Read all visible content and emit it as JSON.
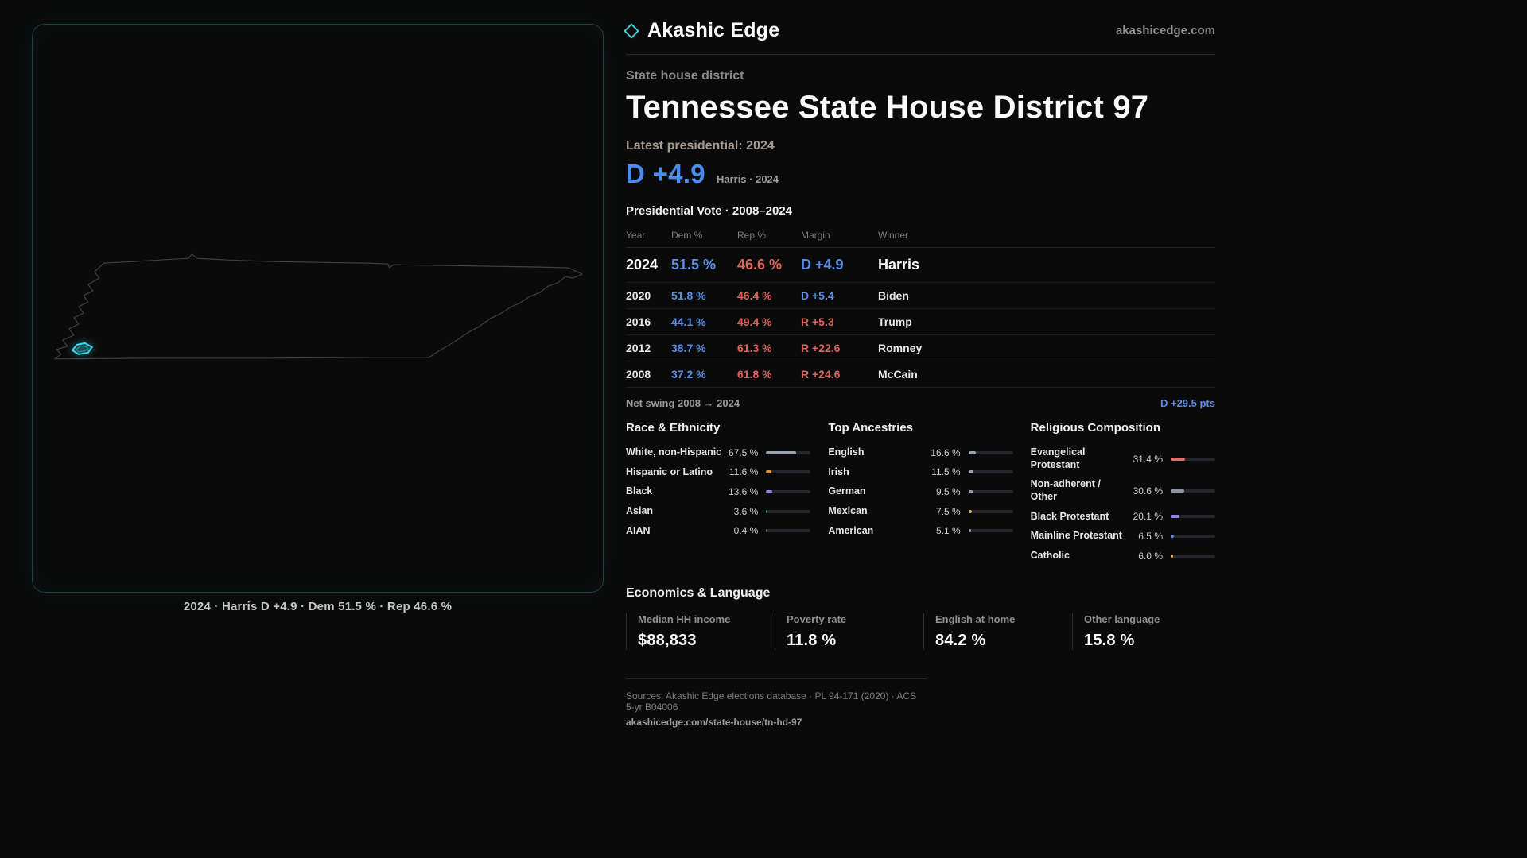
{
  "theme": {
    "background": "#0a0a0a",
    "accent_cyan": "#3ecfdd",
    "dem_blue": "#5b8de4",
    "dem_blue_bright": "#4a8df0",
    "rep_red": "#d9655c"
  },
  "brand": {
    "name": "Akashic Edge",
    "website": "akashicedge.com",
    "icon": "diamond-outline-icon"
  },
  "map": {
    "region": "Tennessee",
    "caption": "2024 · Harris D +4.9 · Dem 51.5 % · Rep 46.6 %"
  },
  "header": {
    "kicker": "State house district",
    "title": "Tennessee State House District 97",
    "latest_label": "Latest presidential: 2024",
    "headline_margin": "D +4.9",
    "headline_detail": "Harris · 2024"
  },
  "vote_table": {
    "title": "Presidential Vote · 2008–2024",
    "columns": [
      "Year",
      "Dem %",
      "Rep %",
      "Margin",
      "Winner"
    ],
    "rows": [
      {
        "year": "2024",
        "dem": "51.5 %",
        "rep": "46.6 %",
        "margin": "D +4.9",
        "party": "D",
        "winner": "Harris"
      },
      {
        "year": "2020",
        "dem": "51.8 %",
        "rep": "46.4 %",
        "margin": "D +5.4",
        "party": "D",
        "winner": "Biden"
      },
      {
        "year": "2016",
        "dem": "44.1 %",
        "rep": "49.4 %",
        "margin": "R +5.3",
        "party": "R",
        "winner": "Trump"
      },
      {
        "year": "2012",
        "dem": "38.7 %",
        "rep": "61.3 %",
        "margin": "R +22.6",
        "party": "R",
        "winner": "Romney"
      },
      {
        "year": "2008",
        "dem": "37.2 %",
        "rep": "61.8 %",
        "margin": "R +24.6",
        "party": "R",
        "winner": "McCain"
      }
    ],
    "net_swing_label": "Net swing 2008 → 2024",
    "net_swing_value": "D +29.5 pts"
  },
  "demographics": {
    "race": {
      "title": "Race & Ethnicity",
      "rows": [
        {
          "label": "White, non-Hispanic",
          "display": "67.5 %",
          "value": 67.5,
          "color": "#9aa3b2"
        },
        {
          "label": "Hispanic or Latino",
          "display": "11.6 %",
          "value": 11.6,
          "color": "#d99a3f"
        },
        {
          "label": "Black",
          "display": "13.6 %",
          "value": 13.6,
          "color": "#9b84e8"
        },
        {
          "label": "Asian",
          "display": "3.6 %",
          "value": 3.6,
          "color": "#35b98a"
        },
        {
          "label": "AIAN",
          "display": "0.4 %",
          "value": 0.4,
          "color": "#8b8b8b"
        }
      ]
    },
    "ancestries": {
      "title": "Top Ancestries",
      "rows": [
        {
          "label": "English",
          "display": "16.6 %",
          "value": 16.6,
          "color": "#9aa3b2"
        },
        {
          "label": "Irish",
          "display": "11.5 %",
          "value": 11.5,
          "color": "#9aa3b2"
        },
        {
          "label": "German",
          "display": "9.5 %",
          "value": 9.5,
          "color": "#9aa3b2"
        },
        {
          "label": "Mexican",
          "display": "7.5 %",
          "value": 7.5,
          "color": "#d9b43f"
        },
        {
          "label": "American",
          "display": "5.1 %",
          "value": 5.1,
          "color": "#9aa3b2"
        }
      ]
    },
    "religion": {
      "title": "Religious Composition",
      "rows": [
        {
          "label": "Evangelical Protestant",
          "display": "31.4 %",
          "value": 31.4,
          "color": "#e06c6c"
        },
        {
          "label": "Non-adherent / Other",
          "display": "30.6 %",
          "value": 30.6,
          "color": "#8f959e"
        },
        {
          "label": "Black Protestant",
          "display": "20.1 %",
          "value": 20.1,
          "color": "#9b84e8"
        },
        {
          "label": "Mainline Protestant",
          "display": "6.5 %",
          "value": 6.5,
          "color": "#5b8de4"
        },
        {
          "label": "Catholic",
          "display": "6.0 %",
          "value": 6.0,
          "color": "#d9b43f"
        }
      ]
    }
  },
  "economics": {
    "title": "Economics & Language",
    "stats": [
      {
        "label": "Median HH income",
        "value": "$88,833"
      },
      {
        "label": "Poverty rate",
        "value": "11.8 %"
      },
      {
        "label": "English at home",
        "value": "84.2 %"
      },
      {
        "label": "Other language",
        "value": "15.8 %"
      }
    ]
  },
  "footer": {
    "sources": "Sources: Akashic Edge elections database · PL 94-171 (2020) · ACS 5-yr B04006",
    "permalink": "akashicedge.com/state-house/tn-hd-97"
  }
}
